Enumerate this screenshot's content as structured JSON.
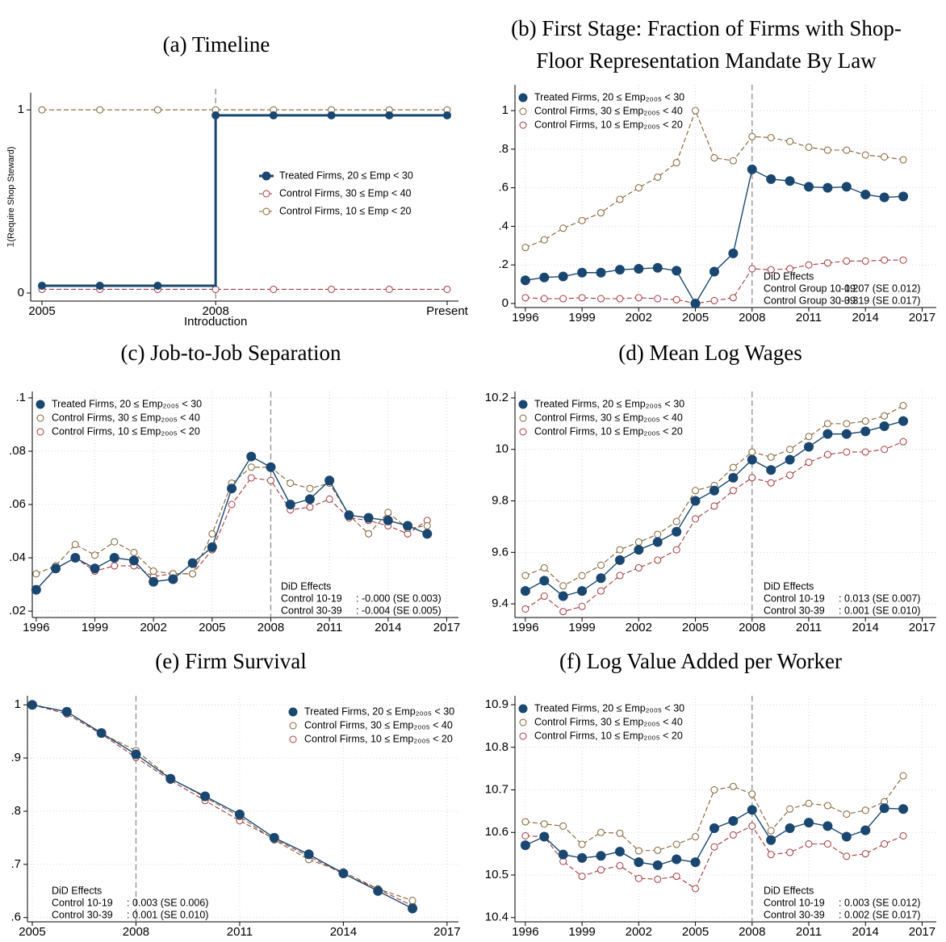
{
  "chart_data": [
    {
      "type": "line",
      "title": "(a) Timeline",
      "x_label": "Introduction",
      "y_label": "𝟙(Require Shop Steward)",
      "categories": [
        "2005",
        null,
        null,
        "2008",
        null,
        null,
        null,
        "Present"
      ],
      "ylim": [
        -0.044,
        1.093
      ],
      "yticks": [
        0,
        1
      ],
      "grid": false,
      "step": true,
      "vline": "2008",
      "legend": "center-right",
      "series": [
        {
          "name": "Treated Firms, 20 ≤ Emp < 30",
          "color": "#1a476f",
          "marker": "filled",
          "dash": false,
          "values": [
            0.04,
            0.04,
            0.04,
            0.97,
            0.97,
            0.97,
            0.97,
            0.97
          ]
        },
        {
          "name": "Control Firms, 30 ≤ Emp < 40",
          "color": "#a3393f",
          "marker": "hollow",
          "dash": true,
          "values": [
            0.02,
            0.02,
            0.02,
            0.02,
            0.02,
            0.02,
            0.02,
            0.02
          ]
        },
        {
          "name": "Control Firms, 10 ≤ Emp < 20",
          "color": "#806234",
          "marker": "hollow",
          "dash": true,
          "values": [
            1,
            1,
            1,
            1,
            1,
            1,
            1,
            1
          ]
        }
      ]
    },
    {
      "type": "line",
      "title": [
        "(b) First Stage: Fraction of Firms with Shop-",
        "Floor Representation Mandate By Law"
      ],
      "x": [
        1996,
        1997,
        1998,
        1999,
        2000,
        2001,
        2002,
        2003,
        2004,
        2005,
        2006,
        2007,
        2008,
        2009,
        2010,
        2011,
        2012,
        2013,
        2014,
        2015,
        2016
      ],
      "xlim": [
        1995.45,
        2017.75
      ],
      "xticks": [
        1996,
        1999,
        2002,
        2005,
        2008,
        2011,
        2014,
        2017
      ],
      "ylim": [
        -0.021,
        1.134
      ],
      "yticks": [
        0,
        {
          "value": 0.2,
          "label": ".2"
        },
        {
          "value": 0.4,
          "label": ".4"
        },
        {
          "value": 0.6,
          "label": ".6"
        },
        {
          "value": 0.8,
          "label": ".8"
        },
        1
      ],
      "grid": true,
      "vline": 2008,
      "legend": "top-left",
      "series": [
        {
          "name": "Treated Firms, 20 ≤ Emp₂₀₀₅ < 30",
          "color": "#1a476f",
          "marker": "filled",
          "dash": false,
          "values": [
            0.12,
            0.135,
            0.14,
            0.16,
            0.16,
            0.175,
            0.18,
            0.185,
            0.17,
            0,
            0.165,
            0.26,
            0.695,
            0.645,
            0.635,
            0.605,
            0.6,
            0.605,
            0.565,
            0.55,
            0.555
          ]
        },
        {
          "name": "Control Firms, 30 ≤ Emp₂₀₀₅ < 40",
          "color": "#806234",
          "marker": "hollow",
          "dash": true,
          "values": [
            0.29,
            0.33,
            0.39,
            0.43,
            0.47,
            0.54,
            0.6,
            0.655,
            0.73,
            1,
            0.755,
            0.74,
            0.865,
            0.86,
            0.84,
            0.81,
            0.795,
            0.795,
            0.77,
            0.76,
            0.745
          ]
        },
        {
          "name": "Control Firms, 10 ≤ Emp₂₀₀₅ < 20",
          "color": "#a3393f",
          "marker": "hollow",
          "dash": true,
          "values": [
            0.03,
            0.025,
            0.025,
            0.03,
            0.025,
            0.025,
            0.03,
            0.025,
            0.02,
            0,
            0.015,
            0.03,
            0.18,
            0.175,
            0.18,
            0.2,
            0.21,
            0.22,
            0.22,
            0.225,
            0.225
          ]
        }
      ],
      "did": {
        "title": "DiD Effects",
        "position": "bottom-right",
        "rows": [
          [
            "Control Group 10-19",
            ": 0.207 (SE 0.012)"
          ],
          [
            "Control Group 30-39",
            ": 0.319 (SE 0.017)"
          ]
        ]
      }
    },
    {
      "type": "line",
      "title": "(c) Job-to-Job Separation",
      "x": [
        1996,
        1997,
        1998,
        1999,
        2000,
        2001,
        2002,
        2003,
        2004,
        2005,
        2006,
        2007,
        2008,
        2009,
        2010,
        2011,
        2012,
        2013,
        2014,
        2015,
        2016
      ],
      "xlim": [
        1995.8,
        2017.6
      ],
      "xticks": [
        1996,
        1999,
        2002,
        2005,
        2008,
        2011,
        2014,
        2017
      ],
      "ylim": [
        0.0176,
        0.1024
      ],
      "yticks": [
        {
          "value": 0.02,
          "label": ".02"
        },
        {
          "value": 0.04,
          "label": ".04"
        },
        {
          "value": 0.06,
          "label": ".06"
        },
        {
          "value": 0.08,
          "label": ".08"
        },
        {
          "value": 0.1,
          "label": ".1"
        }
      ],
      "grid": true,
      "vline": 2008,
      "legend": "top-left",
      "series": [
        {
          "name": "Treated Firms, 20 ≤ Emp₂₀₀₅ < 30",
          "color": "#1a476f",
          "marker": "filled",
          "dash": false,
          "values": [
            0.028,
            0.036,
            0.04,
            0.036,
            0.04,
            0.039,
            0.031,
            0.032,
            0.038,
            0.044,
            0.066,
            0.078,
            0.074,
            0.06,
            0.062,
            0.069,
            0.056,
            0.055,
            0.054,
            0.052,
            0.049
          ]
        },
        {
          "name": "Control Firms, 30 ≤ Emp₂₀₀₅ < 40",
          "color": "#806234",
          "marker": "hollow",
          "dash": true,
          "values": [
            0.034,
            0.037,
            0.045,
            0.041,
            0.046,
            0.042,
            0.035,
            0.034,
            0.034,
            0.049,
            0.068,
            0.074,
            0.074,
            0.068,
            0.066,
            0.068,
            0.056,
            0.049,
            0.057,
            0.051,
            0.052
          ]
        },
        {
          "name": "Control Firms, 10 ≤ Emp₂₀₀₅ < 20",
          "color": "#a3393f",
          "marker": "hollow",
          "dash": true,
          "values": [
            0.028,
            0.036,
            0.04,
            0.035,
            0.037,
            0.037,
            0.033,
            0.034,
            0.034,
            0.043,
            0.06,
            0.07,
            0.069,
            0.058,
            0.059,
            0.062,
            0.055,
            0.054,
            0.052,
            0.049,
            0.054
          ]
        }
      ],
      "did": {
        "title": "DiD Effects",
        "position": "bottom-right",
        "rows": [
          [
            "Control 10-19",
            ": -0.000 (SE 0.003)"
          ],
          [
            "Control 30-39",
            ": -0.004 (SE 0.005)"
          ]
        ]
      }
    },
    {
      "type": "line",
      "title": "(d) Mean Log Wages",
      "x": [
        1996,
        1997,
        1998,
        1999,
        2000,
        2001,
        2002,
        2003,
        2004,
        2005,
        2006,
        2007,
        2008,
        2009,
        2010,
        2011,
        2012,
        2013,
        2014,
        2015,
        2016
      ],
      "xlim": [
        1995.45,
        2017.75
      ],
      "xticks": [
        1996,
        1999,
        2002,
        2005,
        2008,
        2011,
        2014,
        2017
      ],
      "ylim": [
        9.347,
        10.225
      ],
      "yticks": [
        9.4,
        9.6,
        9.8,
        10,
        10.2
      ],
      "grid": true,
      "vline": 2008,
      "legend": "top-left",
      "series": [
        {
          "name": "Treated Firms, 20 ≤ Emp₂₀₀₅ < 30",
          "color": "#1a476f",
          "marker": "filled",
          "dash": false,
          "values": [
            9.45,
            9.49,
            9.43,
            9.45,
            9.5,
            9.57,
            9.61,
            9.64,
            9.68,
            9.8,
            9.84,
            9.89,
            9.96,
            9.92,
            9.96,
            10.01,
            10.06,
            10.06,
            10.07,
            10.09,
            10.11
          ]
        },
        {
          "name": "Control Firms, 30 ≤ Emp₂₀₀₅ < 40",
          "color": "#806234",
          "marker": "hollow",
          "dash": true,
          "values": [
            9.51,
            9.54,
            9.47,
            9.51,
            9.55,
            9.61,
            9.64,
            9.67,
            9.72,
            9.84,
            9.86,
            9.93,
            9.99,
            9.97,
            10,
            10.05,
            10.1,
            10.1,
            10.11,
            10.13,
            10.17
          ]
        },
        {
          "name": "Control Firms, 10 ≤ Emp₂₀₀₅ < 20",
          "color": "#a3393f",
          "marker": "hollow",
          "dash": true,
          "values": [
            9.38,
            9.43,
            9.37,
            9.39,
            9.45,
            9.51,
            9.54,
            9.57,
            9.61,
            9.73,
            9.78,
            9.84,
            9.89,
            9.87,
            9.9,
            9.95,
            9.98,
            9.99,
            9.99,
            10,
            10.03
          ]
        }
      ],
      "did": {
        "title": "DiD Effects",
        "position": "bottom-right",
        "rows": [
          [
            "Control 10-19",
            ": 0.013 (SE 0.007)"
          ],
          [
            "Control 30-39",
            ": 0.001 (SE 0.010)"
          ]
        ]
      }
    },
    {
      "type": "line",
      "title": "(e) Firm Survival",
      "x": [
        2005,
        2006,
        2007,
        2008,
        2009,
        2010,
        2011,
        2012,
        2013,
        2014,
        2015,
        2016
      ],
      "xlim": [
        2004.86,
        2017.33
      ],
      "xticks": [
        2005,
        2008,
        2011,
        2014,
        2017
      ],
      "ylim": [
        0.592,
        1.017
      ],
      "yticks": [
        {
          "value": 0.6,
          "label": ".6"
        },
        {
          "value": 0.7,
          "label": ".7"
        },
        {
          "value": 0.8,
          "label": ".8"
        },
        {
          "value": 0.9,
          "label": ".9"
        },
        1
      ],
      "grid": true,
      "vline": 2008,
      "legend": "top-right",
      "series": [
        {
          "name": "Treated Firms, 20 ≤ Emp₂₀₀₅ < 30",
          "color": "#1a476f",
          "marker": "filled",
          "dash": false,
          "values": [
            1,
            0.987,
            0.947,
            0.907,
            0.861,
            0.828,
            0.794,
            0.75,
            0.719,
            0.683,
            0.65,
            0.617
          ]
        },
        {
          "name": "Control Firms, 30 ≤ Emp₂₀₀₅ < 40",
          "color": "#806234",
          "marker": "hollow",
          "dash": true,
          "values": [
            1,
            0.987,
            0.946,
            0.914,
            0.862,
            0.826,
            0.79,
            0.746,
            0.709,
            0.686,
            0.654,
            0.632
          ]
        },
        {
          "name": "Control Firms, 10 ≤ Emp₂₀₀₅ < 20",
          "color": "#a3393f",
          "marker": "hollow",
          "dash": true,
          "values": [
            1,
            0.983,
            0.945,
            0.901,
            0.858,
            0.82,
            0.782,
            0.748,
            0.715,
            0.682,
            0.654,
            0.622
          ]
        }
      ],
      "did": {
        "title": "DiD Effects",
        "position": "bottom-left",
        "rows": [
          [
            "Control 10-19",
            ": 0.003 (SE 0.006)"
          ],
          [
            "Control 30-39",
            ": 0.001 (SE 0.010)"
          ]
        ]
      }
    },
    {
      "type": "line",
      "title": "(f) Log Value Added per Worker",
      "x": [
        1996,
        1997,
        1998,
        1999,
        2000,
        2001,
        2002,
        2003,
        2004,
        2005,
        2006,
        2007,
        2008,
        2009,
        2010,
        2011,
        2012,
        2013,
        2014,
        2015,
        2016
      ],
      "xlim": [
        1995.45,
        2017.75
      ],
      "xticks": [
        1996,
        1999,
        2002,
        2005,
        2008,
        2011,
        2014,
        2017
      ],
      "ylim": [
        10.39,
        10.921
      ],
      "yticks": [
        10.4,
        10.5,
        10.6,
        10.7,
        10.8,
        10.9
      ],
      "grid": true,
      "vline": 2008,
      "legend": "top-left",
      "series": [
        {
          "name": "Treated Firms, 20 ≤ Emp₂₀₀₅ < 30",
          "color": "#1a476f",
          "marker": "filled",
          "dash": false,
          "values": [
            10.57,
            10.59,
            10.548,
            10.54,
            10.545,
            10.555,
            10.53,
            10.523,
            10.537,
            10.53,
            10.61,
            10.627,
            10.653,
            10.582,
            10.61,
            10.623,
            10.615,
            10.59,
            10.605,
            10.657,
            10.655
          ]
        },
        {
          "name": "Control Firms, 30 ≤ Emp₂₀₀₅ < 40",
          "color": "#806234",
          "marker": "hollow",
          "dash": true,
          "values": [
            10.625,
            10.62,
            10.615,
            10.572,
            10.6,
            10.598,
            10.557,
            10.558,
            10.572,
            10.59,
            10.7,
            10.708,
            10.69,
            10.604,
            10.655,
            10.668,
            10.663,
            10.643,
            10.652,
            10.672,
            10.733
          ]
        },
        {
          "name": "Control Firms, 10 ≤ Emp₂₀₀₅ < 20",
          "color": "#a3393f",
          "marker": "hollow",
          "dash": true,
          "values": [
            10.592,
            10.59,
            10.532,
            10.497,
            10.512,
            10.522,
            10.492,
            10.49,
            10.497,
            10.468,
            10.566,
            10.594,
            10.615,
            10.548,
            10.553,
            10.573,
            10.573,
            10.544,
            10.55,
            10.573,
            10.592
          ]
        }
      ],
      "did": {
        "title": "DiD Effects",
        "position": "bottom-right",
        "rows": [
          [
            "Control 10-19",
            ": 0.003 (SE 0.012)"
          ],
          [
            "Control 30-39",
            ": 0.002 (SE 0.017)"
          ]
        ]
      }
    }
  ]
}
